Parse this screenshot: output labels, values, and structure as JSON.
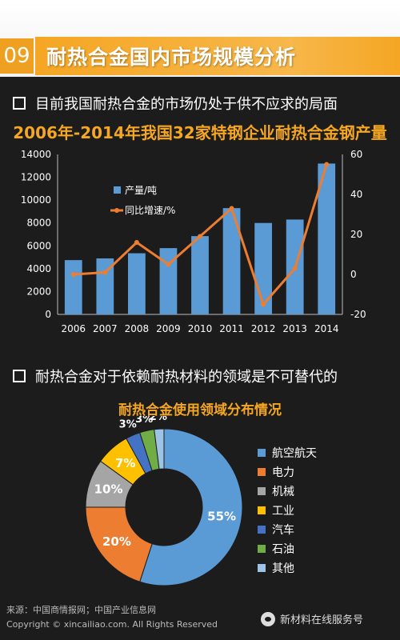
{
  "header": {
    "number": "09",
    "title": "耐热合金国内市场规模分析"
  },
  "section1": {
    "bullet": "目前我国耐热合金的市场仍处于供不应求的局面"
  },
  "section2": {
    "bullet": "耐热合金对于依赖耐热材料的领域是不可替代的"
  },
  "footer": {
    "source": "来源：中国商情报网；中国产业信息网",
    "copyright": "Copyright © xincailiao.com. All Rights Reserved",
    "wechat": "新材料在线服务号"
  },
  "colors": {
    "accent": "#f5a623",
    "bar": "#5b9bd5",
    "line": "#ed7d31"
  },
  "chart_data": [
    {
      "type": "bar",
      "title": "2006年-2014年我国32家特钢企业耐热合金钢产量",
      "categories": [
        "2006",
        "2007",
        "2008",
        "2009",
        "2010",
        "2011",
        "2012",
        "2013",
        "2014"
      ],
      "series": [
        {
          "name": "产量/吨",
          "type": "bar",
          "axis": "left",
          "values": [
            4750,
            4900,
            5350,
            5800,
            6850,
            9300,
            8000,
            8300,
            13200
          ]
        },
        {
          "name": "同比增速/%",
          "type": "line",
          "axis": "right",
          "values": [
            0,
            1,
            16,
            5,
            19,
            33,
            -15,
            3,
            55
          ]
        }
      ],
      "ylim_left": [
        0,
        14000
      ],
      "ylim_right": [
        -20,
        60
      ],
      "yticks_left": [
        0,
        2000,
        4000,
        6000,
        8000,
        10000,
        12000,
        14000
      ],
      "yticks_right": [
        -20,
        0,
        20,
        40,
        60
      ],
      "legend": "upper-left",
      "grid": false
    },
    {
      "type": "pie",
      "variant": "donut",
      "title": "耐热合金使用领域分布情况",
      "labels": [
        "航空航天",
        "电力",
        "机械",
        "工业",
        "汽车",
        "石油",
        "其他"
      ],
      "values": [
        55,
        20,
        10,
        7,
        3,
        3,
        2
      ],
      "value_labels": [
        "55%",
        "20%",
        "10%",
        "7%",
        "3%",
        "3%",
        "2%"
      ],
      "colors": [
        "#5b9bd5",
        "#ed7d31",
        "#a5a5a5",
        "#ffc000",
        "#4472c4",
        "#70ad47",
        "#9dc3e6"
      ],
      "legend": "right"
    }
  ]
}
